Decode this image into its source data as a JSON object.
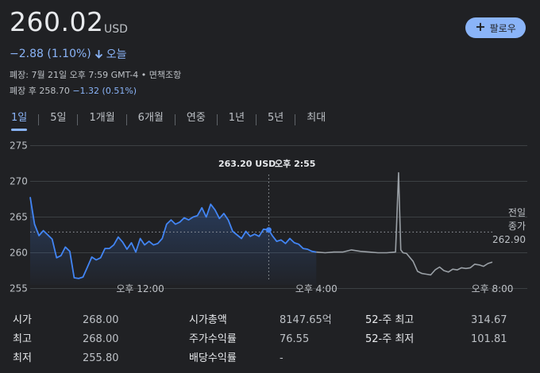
{
  "quote": {
    "price": "260.02",
    "currency": "USD",
    "change": "−2.88 (1.10%)",
    "period": "오늘",
    "close_info": "폐장: 7월 21일 오후 7:59 GMT-4 •",
    "disclaimer": "면책조항",
    "after_hours_label": "폐장 후 258.70",
    "after_hours_change": "−1.32 (0.51%)"
  },
  "follow_button": {
    "label": "팔로우"
  },
  "tabs": [
    {
      "label": "1일",
      "active": true
    },
    {
      "label": "5일"
    },
    {
      "label": "1개월"
    },
    {
      "label": "6개월"
    },
    {
      "label": "연중"
    },
    {
      "label": "1년"
    },
    {
      "label": "5년"
    },
    {
      "label": "최대"
    }
  ],
  "tooltip": {
    "price": "263.20 USD",
    "time": "오후 2:55"
  },
  "prev_close": {
    "label1": "전일",
    "label2": "종가",
    "value": "262.90"
  },
  "colors": {
    "accent": "#8ab4f8",
    "line": "#4285f4",
    "afterhours": "#9aa0a6",
    "background": "#202124"
  },
  "chart_data": {
    "type": "line",
    "yticks": [
      "275",
      "270",
      "265",
      "260",
      "255"
    ],
    "ylim": [
      254.5,
      276.5
    ],
    "xticks": [
      "오후 12:00",
      "오후 4:00",
      "오후 8:00"
    ],
    "xlim": [
      9.5,
      20.0
    ],
    "prev_close": 262.9,
    "series": [
      {
        "x": [
          9.5,
          9.6,
          9.7,
          9.8,
          9.9,
          10.0,
          10.1,
          10.2,
          10.3,
          10.4,
          10.5,
          10.6,
          10.7,
          10.8,
          10.9,
          11.0,
          11.1,
          11.2,
          11.3,
          11.4,
          11.5,
          11.6,
          11.7,
          11.8,
          11.9,
          12.0,
          12.1,
          12.2,
          12.3,
          12.4,
          12.5,
          12.6,
          12.7,
          12.8,
          12.9,
          13.0,
          13.1,
          13.2,
          13.3,
          13.4,
          13.5,
          13.6,
          13.7,
          13.8,
          13.9,
          14.0,
          14.1,
          14.2,
          14.3,
          14.4,
          14.5,
          14.6,
          14.7,
          14.8,
          14.92,
          15.0,
          15.1,
          15.2,
          15.3,
          15.4,
          15.5,
          15.6,
          15.7,
          15.8,
          15.9,
          16.0
        ],
        "values": [
          267.8,
          264.0,
          262.4,
          263.1,
          262.5,
          261.9,
          259.3,
          259.6,
          260.8,
          260.2,
          256.5,
          256.4,
          256.6,
          258.0,
          259.4,
          259.0,
          259.3,
          260.6,
          260.6,
          261.1,
          262.2,
          261.5,
          260.5,
          261.4,
          260.1,
          262.0,
          261.1,
          261.6,
          261.1,
          261.3,
          262.0,
          264.0,
          264.6,
          264.0,
          264.3,
          264.9,
          264.6,
          265.0,
          265.2,
          266.3,
          265.0,
          266.8,
          266.0,
          264.8,
          265.5,
          264.6,
          263.0,
          262.5,
          262.0,
          263.0,
          262.3,
          262.6,
          262.3,
          263.3,
          263.2,
          262.4,
          261.6,
          261.8,
          261.3,
          262.0,
          261.4,
          261.2,
          260.6,
          260.5,
          260.2,
          260.1
        ]
      },
      {
        "x": [
          16.0,
          16.2,
          16.4,
          16.6,
          16.8,
          17.0,
          17.2,
          17.4,
          17.6,
          17.8,
          17.87,
          17.92,
          17.97,
          18.05,
          18.2,
          18.3,
          18.4,
          18.5,
          18.6,
          18.7,
          18.8,
          18.9,
          19.0,
          19.1,
          19.2,
          19.3,
          19.4,
          19.5,
          19.6,
          19.7,
          19.8,
          19.9,
          20.0
        ],
        "values": [
          260.1,
          260.0,
          260.1,
          260.1,
          260.4,
          260.2,
          260.1,
          260.0,
          260.0,
          260.1,
          271.2,
          260.4,
          260.0,
          259.9,
          258.8,
          257.4,
          257.1,
          257.0,
          256.9,
          257.6,
          258.0,
          257.5,
          257.3,
          257.7,
          257.6,
          257.9,
          257.8,
          257.9,
          258.4,
          258.3,
          258.1,
          258.5,
          258.7
        ]
      }
    ]
  },
  "stats": [
    {
      "label": "시가",
      "value": "268.00"
    },
    {
      "label": "최고",
      "value": "268.00"
    },
    {
      "label": "최저",
      "value": "255.80"
    },
    {
      "label": "시가총액",
      "value": "8147.65억"
    },
    {
      "label": "주가수익률",
      "value": "76.55"
    },
    {
      "label": "배당수익률",
      "value": "-"
    },
    {
      "label": "52-주 최고",
      "value": "314.67"
    },
    {
      "label": "52-주 최저",
      "value": "101.81"
    }
  ]
}
